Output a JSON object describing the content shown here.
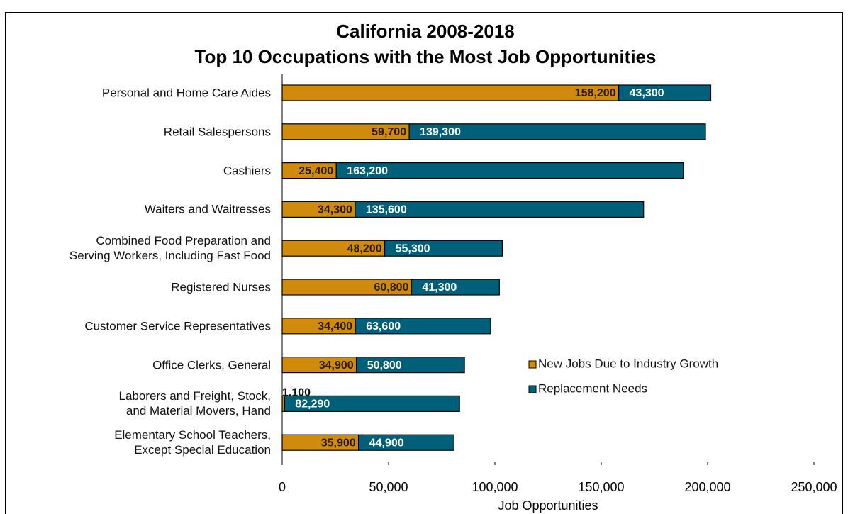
{
  "chart_data": {
    "type": "stacked-barh",
    "title": [
      "California 2008-2018",
      "Top 10 Occupations with the Most Job Opportunities"
    ],
    "x_label": "Job Opportunities",
    "categories": [
      "Personal and Home Care Aides",
      "Retail Salespersons",
      "Cashiers",
      "Waiters and Waitresses",
      "Combined Food Preparation and\nServing Workers, Including Fast Food",
      "Registered Nurses",
      "Customer Service Representatives",
      "Office Clerks, General",
      "Laborers and Freight, Stock,\nand Material Movers, Hand",
      "Elementary School Teachers,\nExcept Special Education"
    ],
    "series": [
      {
        "name": "New Jobs Due to Industry Growth",
        "color": "#d08a0c",
        "values": [
          158200,
          59700,
          25400,
          34300,
          48200,
          60800,
          34400,
          34900,
          1100,
          35900
        ],
        "value_labels": [
          "158,200",
          "59,700",
          "25,400",
          "34,300",
          "48,200",
          "60,800",
          "34,400",
          "34,900",
          "1,100",
          "35,900"
        ]
      },
      {
        "name": "Replacement Needs",
        "color": "#00607a",
        "values": [
          43300,
          139300,
          163200,
          135600,
          55300,
          41300,
          63600,
          50800,
          82290,
          44900
        ],
        "value_labels": [
          "43,300",
          "139,300",
          "163,200",
          "135,600",
          "55,300",
          "41,300",
          "63,600",
          "50,800",
          "82,290",
          "44,900"
        ]
      }
    ],
    "xlim": [
      0,
      250000
    ],
    "xticks": [
      0,
      {
        "value": 50000,
        "label": "50,000"
      },
      {
        "value": 100000,
        "label": "100,000"
      },
      {
        "value": 150000,
        "label": "150,000"
      },
      {
        "value": 200000,
        "label": "200,000"
      },
      {
        "value": 250000,
        "label": "250,000"
      }
    ]
  }
}
